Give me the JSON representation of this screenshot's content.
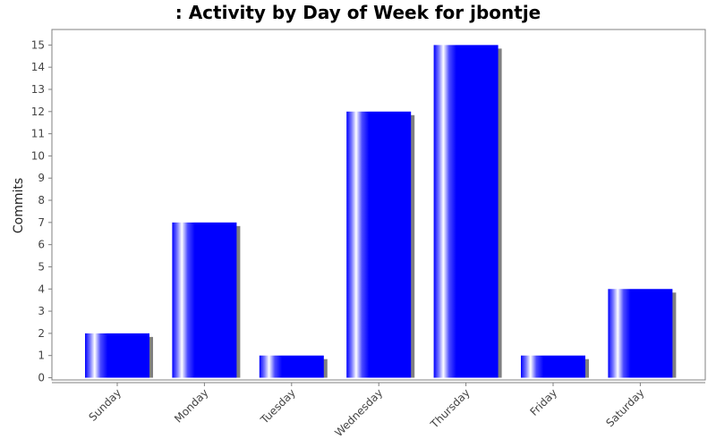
{
  "chart_data": {
    "type": "bar",
    "title": ": Activity by Day of Week for jbontje",
    "xlabel": "",
    "ylabel": "Commits",
    "categories": [
      "Sunday",
      "Monday",
      "Tuesday",
      "Wednesday",
      "Thursday",
      "Friday",
      "Saturday"
    ],
    "values": [
      2,
      7,
      1,
      12,
      15,
      1,
      4
    ],
    "ylim": [
      0,
      15.7
    ],
    "yticks": [
      "0",
      "1",
      "2",
      "3",
      "4",
      "5",
      "6",
      "7",
      "8",
      "9",
      "10",
      "11",
      "12",
      "13",
      "14",
      "15"
    ],
    "grid": false,
    "legend": "none",
    "colors": {
      "bar": "#0000ff",
      "bar_highlight": "#ffffff",
      "shadow": "#808080",
      "plot_border": "#808080",
      "axis": "#808080"
    }
  }
}
